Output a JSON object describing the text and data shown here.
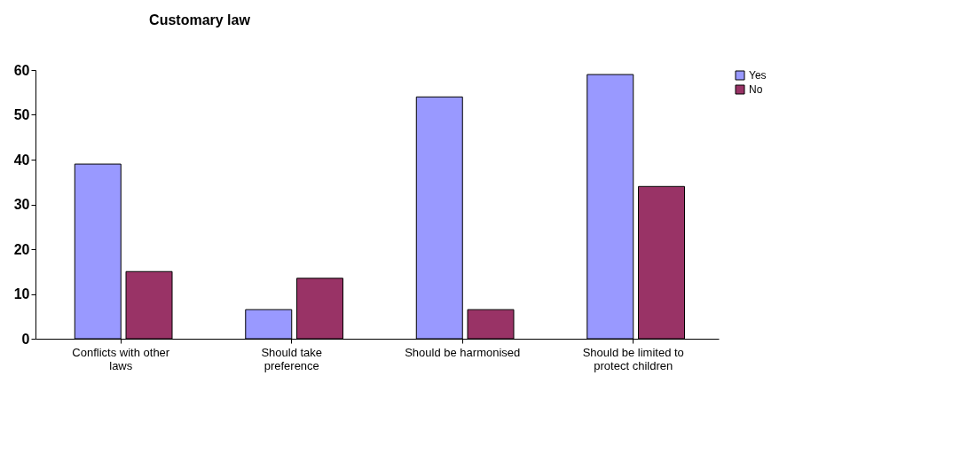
{
  "chart_data": {
    "type": "bar",
    "title": "Customary law",
    "categories": [
      "Conflicts with other laws",
      "Should take preference",
      "Should be harmonised",
      "Should be limited to protect children"
    ],
    "series": [
      {
        "name": "Yes",
        "color": "#9999ff",
        "values": [
          39,
          6.5,
          54,
          59
        ]
      },
      {
        "name": "No",
        "color": "#993366",
        "values": [
          15,
          13.5,
          6.5,
          34
        ]
      }
    ],
    "ylim": [
      0,
      60
    ],
    "yticks": [
      0,
      10,
      20,
      30,
      40,
      50,
      60
    ],
    "grid": false,
    "legend": "right"
  }
}
